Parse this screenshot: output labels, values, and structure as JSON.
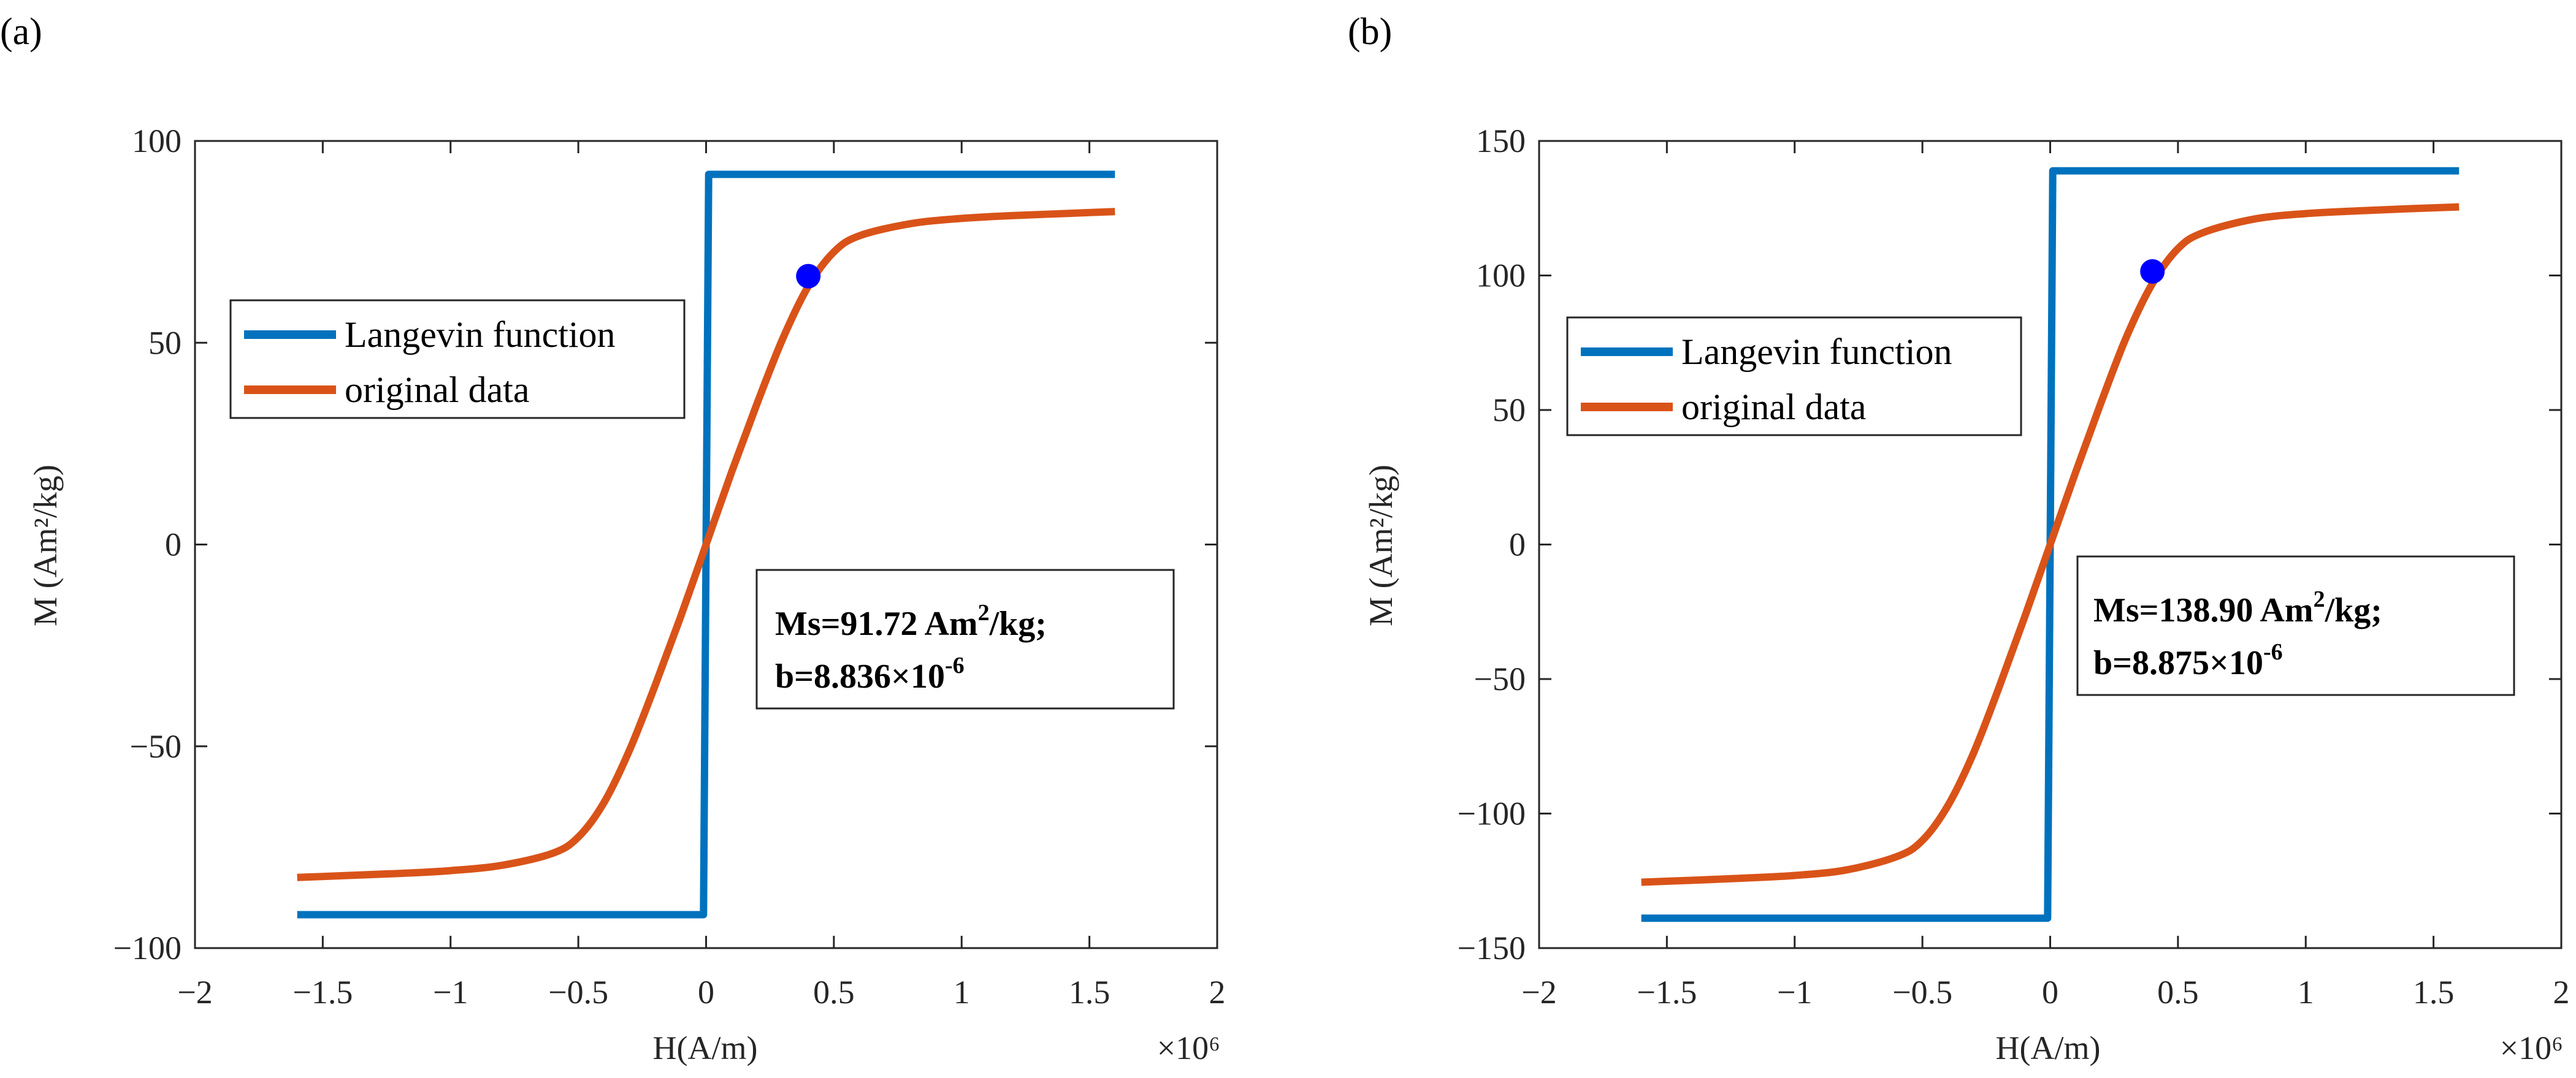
{
  "chart_data": [
    {
      "type": "line",
      "panel_label": "(a)",
      "xlabel": "H(A/m)",
      "ylabel": "M (Am²/kg)",
      "xlim": [
        -2,
        2
      ],
      "ylim": [
        -100,
        100
      ],
      "x_scale_label": "×10⁶",
      "x_tick_labels": [
        "−2",
        "−1.5",
        "−1",
        "−0.5",
        "0",
        "0.5",
        "1",
        "1.5",
        "2"
      ],
      "y_tick_labels": [
        "100",
        "50",
        "0",
        "−50",
        "−100"
      ],
      "series": [
        {
          "name": "Langevin function",
          "color": "#0072BD",
          "Ms": 91.72,
          "b": 8.836
        },
        {
          "name": "original data",
          "color": "#D95319",
          "x": [
            -1.6,
            -1.4,
            -1.2,
            -1.0,
            -0.8,
            -0.6,
            -0.5,
            -0.4,
            -0.3,
            -0.2,
            -0.1,
            0.0,
            0.1,
            0.2,
            0.3,
            0.4,
            0.5,
            0.6,
            0.8,
            1.0,
            1.2,
            1.4,
            1.6
          ],
          "y": [
            -82.5,
            -82.0,
            -81.5,
            -80.8,
            -79.5,
            -76.5,
            -72.5,
            -64.0,
            -51.0,
            -35.0,
            -18.0,
            0.0,
            18.0,
            35.0,
            51.0,
            64.0,
            72.5,
            76.5,
            79.5,
            80.8,
            81.5,
            82.0,
            82.5
          ]
        }
      ],
      "marker": {
        "x": 0.4,
        "y": 66.5,
        "color": "#0000FF"
      },
      "legend": [
        "Langevin function",
        "original data"
      ],
      "annotation": {
        "line1_prefix": "Ms=91.72 Am",
        "line1_sup": "2",
        "line1_suffix": "/kg;",
        "line2_prefix": "b=8.836×10",
        "line2_sup": "-6"
      }
    },
    {
      "type": "line",
      "panel_label": "(b)",
      "xlabel": "H(A/m)",
      "ylabel": "M (Am²/kg)",
      "xlim": [
        -2,
        2
      ],
      "ylim": [
        -150,
        150
      ],
      "x_scale_label": "×10⁶",
      "x_tick_labels": [
        "−2",
        "−1.5",
        "−1",
        "−0.5",
        "0",
        "0.5",
        "1",
        "1.5",
        "2"
      ],
      "y_tick_labels": [
        "150",
        "100",
        "50",
        "0",
        "−50",
        "−100",
        "−150"
      ],
      "series": [
        {
          "name": "Langevin function",
          "color": "#0072BD",
          "Ms": 138.9,
          "b": 8.875
        },
        {
          "name": "original data",
          "color": "#D95319",
          "x": [
            -1.6,
            -1.4,
            -1.2,
            -1.0,
            -0.8,
            -0.6,
            -0.5,
            -0.4,
            -0.3,
            -0.2,
            -0.1,
            0.0,
            0.1,
            0.2,
            0.3,
            0.4,
            0.5,
            0.6,
            0.8,
            1.0,
            1.2,
            1.4,
            1.6
          ],
          "y": [
            -125.5,
            -124.8,
            -124.0,
            -123.0,
            -121.0,
            -116.0,
            -110.0,
            -97.0,
            -77.5,
            -53.0,
            -27.0,
            0.0,
            27.0,
            53.0,
            77.5,
            97.0,
            110.0,
            116.0,
            121.0,
            123.0,
            124.0,
            124.8,
            125.5
          ]
        }
      ],
      "marker": {
        "x": 0.4,
        "y": 101.5,
        "color": "#0000FF"
      },
      "legend": [
        "Langevin function",
        "original data"
      ],
      "annotation": {
        "line1_prefix": "Ms=138.90 Am",
        "line1_sup": "2",
        "line1_suffix": "/kg;",
        "line2_prefix": "b=8.875×10",
        "line2_sup": "-6"
      }
    }
  ]
}
